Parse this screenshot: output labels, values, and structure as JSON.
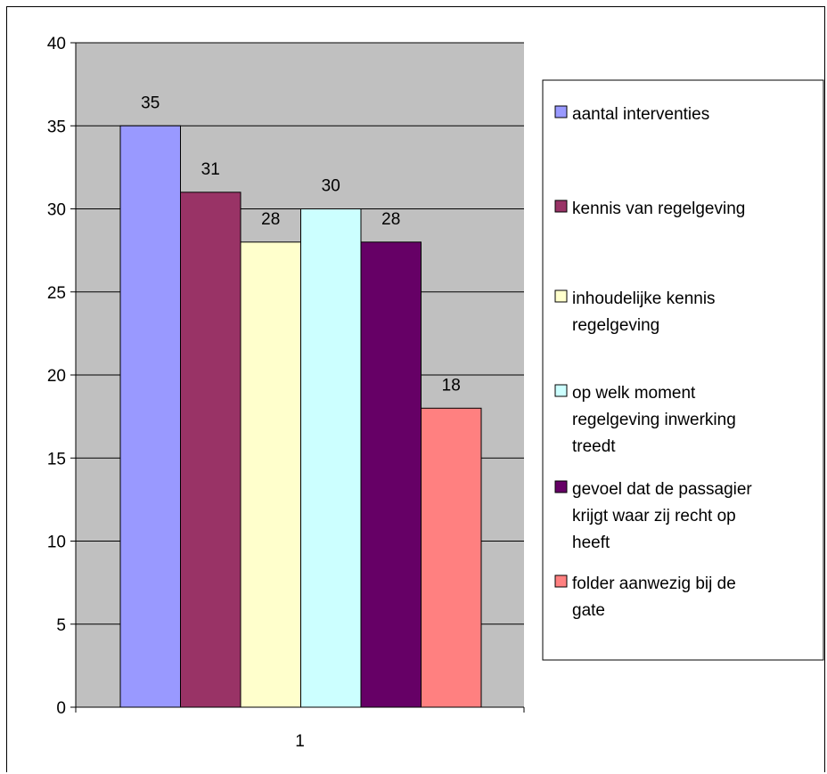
{
  "chart_data": {
    "type": "bar",
    "categories": [
      "1"
    ],
    "ylim": [
      0,
      40
    ],
    "yticks": [
      0,
      5,
      10,
      15,
      20,
      25,
      30,
      35,
      40
    ],
    "grid": true,
    "legend_position": "right",
    "plot_background": "#c0c0c0",
    "series": [
      {
        "name": "aantal interventies",
        "values": [
          35
        ],
        "color": "#9999ff",
        "legend_lines": [
          "aantal interventies"
        ]
      },
      {
        "name": "kennis van regelgeving",
        "values": [
          31
        ],
        "color": "#993366",
        "legend_lines": [
          "kennis van regelgeving"
        ]
      },
      {
        "name": "inhoudelijke kennis regelgeving",
        "values": [
          28
        ],
        "color": "#ffffcc",
        "legend_lines": [
          "inhoudelijke kennis",
          "regelgeving"
        ]
      },
      {
        "name": "op welk moment regelgeving inwerking treedt",
        "values": [
          30
        ],
        "color": "#ccffff",
        "legend_lines": [
          "op welk moment",
          "regelgeving inwerking",
          "treedt"
        ]
      },
      {
        "name": "gevoel dat de passagier krijgt waar zij recht op heeft",
        "values": [
          28
        ],
        "color": "#660066",
        "legend_lines": [
          "gevoel dat de passagier",
          "krijgt waar zij recht op",
          "heeft"
        ]
      },
      {
        "name": "folder aanwezig bij de gate",
        "values": [
          18
        ],
        "color": "#ff8080",
        "legend_lines": [
          "folder aanwezig bij de",
          "gate"
        ]
      }
    ]
  }
}
